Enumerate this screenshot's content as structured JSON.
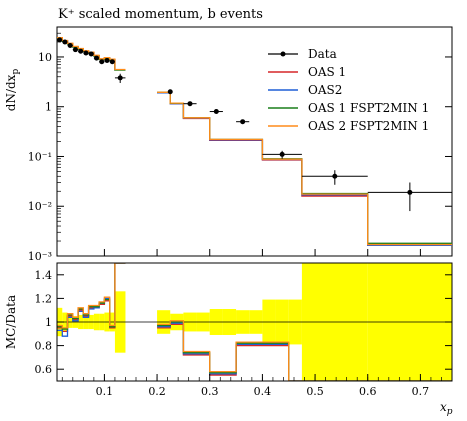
{
  "chart_data": {
    "type": "line",
    "title": "K⁺ scaled momentum, b events",
    "xlabel": "x_p",
    "ylabel": "dN/dx_p",
    "ratio_ylabel": "MC/Data",
    "xlim": [
      0.01,
      0.76
    ],
    "ylim": [
      0.001,
      40
    ],
    "yscale": "log",
    "ratio_ylim": [
      0.5,
      1.5
    ],
    "x_ticks": [
      "0.1",
      "0.2",
      "0.3",
      "0.4",
      "0.5",
      "0.6",
      "0.7"
    ],
    "x_tick_values": [
      0.1,
      0.2,
      0.3,
      0.4,
      0.5,
      0.6,
      0.7
    ],
    "y_ticks": [
      "10",
      "1",
      "10⁻¹",
      "10⁻²",
      "10⁻³"
    ],
    "y_tick_values": [
      10,
      1,
      0.1,
      0.01,
      0.001
    ],
    "ratio_ticks": [
      "1.4",
      "1.2",
      "1",
      "0.8",
      "0.6"
    ],
    "ratio_tick_values": [
      1.4,
      1.2,
      1.0,
      0.8,
      0.6
    ],
    "legend_position": "top-right",
    "bin_edges": [
      0.01,
      0.02,
      0.03,
      0.04,
      0.05,
      0.06,
      0.07,
      0.08,
      0.09,
      0.1,
      0.11,
      0.12,
      0.14,
      0.2,
      0.225,
      0.25,
      0.275,
      0.3,
      0.325,
      0.35,
      0.375,
      0.4,
      0.425,
      0.45,
      0.475,
      0.6,
      0.76
    ],
    "data": {
      "name": "Data",
      "color": "#000000",
      "points": [
        {
          "x": 0.015,
          "y": 22.0,
          "yerr": 1.5,
          "xerr": 0.005
        },
        {
          "x": 0.025,
          "y": 20.0,
          "yerr": 1.2,
          "xerr": 0.005
        },
        {
          "x": 0.035,
          "y": 17.0,
          "yerr": 1.0,
          "xerr": 0.005
        },
        {
          "x": 0.045,
          "y": 14.0,
          "yerr": 0.8,
          "xerr": 0.005
        },
        {
          "x": 0.055,
          "y": 13.0,
          "yerr": 0.8,
          "xerr": 0.005
        },
        {
          "x": 0.065,
          "y": 12.0,
          "yerr": 0.7,
          "xerr": 0.005
        },
        {
          "x": 0.075,
          "y": 11.5,
          "yerr": 0.7,
          "xerr": 0.005
        },
        {
          "x": 0.085,
          "y": 9.5,
          "yerr": 0.6,
          "xerr": 0.005
        },
        {
          "x": 0.095,
          "y": 8.0,
          "yerr": 0.6,
          "xerr": 0.005
        },
        {
          "x": 0.105,
          "y": 8.5,
          "yerr": 0.6,
          "xerr": 0.005
        },
        {
          "x": 0.115,
          "y": 8.0,
          "yerr": 0.6,
          "xerr": 0.005
        },
        {
          "x": 0.13,
          "y": 3.8,
          "yerr": 0.8,
          "xerr": 0.01
        },
        {
          "x": 0.225,
          "y": 2.0,
          "yerr": 0.1,
          "xerr": 0.0
        },
        {
          "x": 0.2625,
          "y": 1.15,
          "yerr": 0.08,
          "xerr": 0.0125
        },
        {
          "x": 0.3125,
          "y": 0.8,
          "yerr": 0.07,
          "xerr": 0.0125
        },
        {
          "x": 0.3625,
          "y": 0.5,
          "yerr": 0.05,
          "xerr": 0.0125
        },
        {
          "x": 0.4375,
          "y": 0.11,
          "yerr": 0.02,
          "xerr": 0.0375
        },
        {
          "x": 0.5375,
          "y": 0.04,
          "yerr": 0.013,
          "xerr": 0.0625
        },
        {
          "x": 0.68,
          "y": 0.019,
          "yerr": 0.011,
          "xerr": 0.08
        }
      ]
    },
    "series": [
      {
        "name": "OAS 1",
        "color": "#d62728",
        "values": [
          24.0,
          21.0,
          18.5,
          16.0,
          14.5,
          13.0,
          12.2,
          10.5,
          9.0,
          9.5,
          8.8,
          5.5,
          null,
          1.9,
          1.15,
          0.58,
          0.58,
          0.21,
          0.21,
          0.21,
          0.21,
          0.085,
          0.085,
          0.085,
          0.016,
          0.00165
        ]
      },
      {
        "name": "OAS2",
        "color": "#1f5fd6",
        "values": [
          24.2,
          21.2,
          18.6,
          16.1,
          14.6,
          13.1,
          12.3,
          10.6,
          9.1,
          9.6,
          8.9,
          5.5,
          null,
          1.9,
          1.15,
          0.59,
          0.59,
          0.215,
          0.215,
          0.215,
          0.215,
          0.087,
          0.087,
          0.087,
          0.017,
          0.00165
        ]
      },
      {
        "name": "OAS 1 FSPT2MIN 1",
        "color": "#1a7f1a",
        "values": [
          23.6,
          20.6,
          18.2,
          15.8,
          14.3,
          12.9,
          12.1,
          10.4,
          8.9,
          9.4,
          8.7,
          5.45,
          null,
          1.95,
          1.17,
          0.6,
          0.6,
          0.22,
          0.22,
          0.22,
          0.22,
          0.09,
          0.09,
          0.09,
          0.018,
          0.0018
        ]
      },
      {
        "name": "OAS 2 FSPT2MIN 1",
        "color": "#ff8c1a",
        "values": [
          24.4,
          21.4,
          18.8,
          16.3,
          14.8,
          13.3,
          12.5,
          10.8,
          9.2,
          9.7,
          9.0,
          5.6,
          null,
          1.95,
          1.18,
          0.6,
          0.6,
          0.22,
          0.22,
          0.22,
          0.22,
          0.088,
          0.088,
          0.088,
          0.0175,
          0.0017
        ]
      }
    ],
    "ratio_series": [
      {
        "name": "OAS 1",
        "color": "#d62728",
        "values": [
          0.95,
          0.92,
          1.05,
          1.02,
          1.1,
          1.05,
          1.12,
          1.12,
          1.15,
          1.18,
          0.95,
          1.5,
          null,
          0.95,
          0.98,
          0.72,
          0.72,
          0.55,
          0.55,
          0.8,
          0.8,
          0.8,
          0.8,
          0.45,
          0.45,
          0.45
        ]
      },
      {
        "name": "OAS2",
        "color": "#1f5fd6",
        "values": [
          0.93,
          0.88,
          1.04,
          1.01,
          1.09,
          1.04,
          1.11,
          1.12,
          1.16,
          1.2,
          0.96,
          1.5,
          null,
          0.96,
          0.99,
          0.73,
          0.73,
          0.56,
          0.56,
          0.81,
          0.81,
          0.81,
          0.81,
          0.45,
          0.45,
          0.45
        ]
      },
      {
        "name": "OAS 1 FSPT2MIN 1",
        "color": "#1a7f1a",
        "values": [
          0.96,
          0.94,
          1.06,
          1.03,
          1.11,
          1.06,
          1.13,
          1.13,
          1.16,
          1.19,
          0.96,
          1.5,
          null,
          0.97,
          1.0,
          0.74,
          0.74,
          0.57,
          0.57,
          0.82,
          0.82,
          0.82,
          0.82,
          0.45,
          0.45,
          0.45
        ]
      },
      {
        "name": "OAS 2 FSPT2MIN 1",
        "color": "#ff8c1a",
        "values": [
          0.97,
          0.95,
          1.07,
          1.04,
          1.12,
          1.07,
          1.14,
          1.14,
          1.17,
          1.21,
          0.97,
          1.5,
          null,
          0.98,
          1.01,
          0.75,
          0.75,
          0.58,
          0.58,
          0.83,
          0.83,
          0.83,
          0.83,
          0.45,
          0.45,
          0.45
        ]
      }
    ],
    "ratio_band": {
      "color": "#ffff00",
      "lower": [
        0.88,
        0.92,
        0.95,
        0.95,
        0.94,
        0.94,
        0.94,
        0.93,
        0.93,
        0.92,
        0.92,
        0.74,
        null,
        0.9,
        0.93,
        0.92,
        0.92,
        0.89,
        0.89,
        0.9,
        0.9,
        0.81,
        0.81,
        0.81,
        0.5,
        0.5
      ],
      "upper": [
        1.12,
        1.08,
        1.05,
        1.05,
        1.06,
        1.06,
        1.06,
        1.07,
        1.07,
        1.08,
        1.08,
        1.26,
        null,
        1.1,
        1.07,
        1.08,
        1.08,
        1.11,
        1.11,
        1.1,
        1.1,
        1.19,
        1.19,
        1.19,
        1.5,
        1.5
      ]
    }
  }
}
